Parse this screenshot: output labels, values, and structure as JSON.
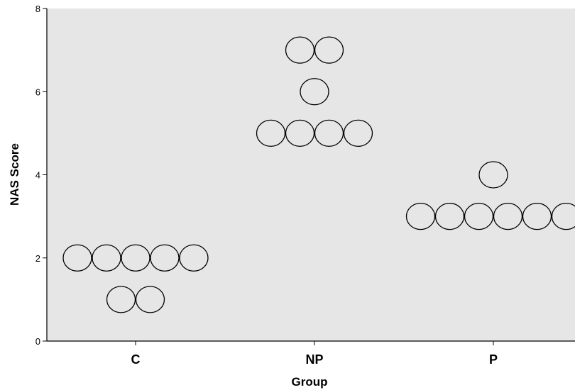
{
  "chart_data": {
    "type": "scatter",
    "subtype": "dot-plot",
    "title": "",
    "xlabel": "Group",
    "ylabel": "NAS Score",
    "categories": [
      "C",
      "NP",
      "P"
    ],
    "ylim": [
      0,
      8
    ],
    "yticks": [
      "0",
      "2",
      "4",
      "6",
      "8"
    ],
    "grid": false,
    "plot_background": "#e6e6e6",
    "marker": "open-circle",
    "series": [
      {
        "category": "C",
        "values": [
          2,
          2,
          2,
          2,
          2,
          1,
          1
        ]
      },
      {
        "category": "NP",
        "values": [
          7,
          7,
          6,
          5,
          5,
          5,
          5
        ]
      },
      {
        "category": "P",
        "values": [
          4,
          3,
          3,
          3,
          3,
          3,
          3
        ]
      }
    ]
  }
}
